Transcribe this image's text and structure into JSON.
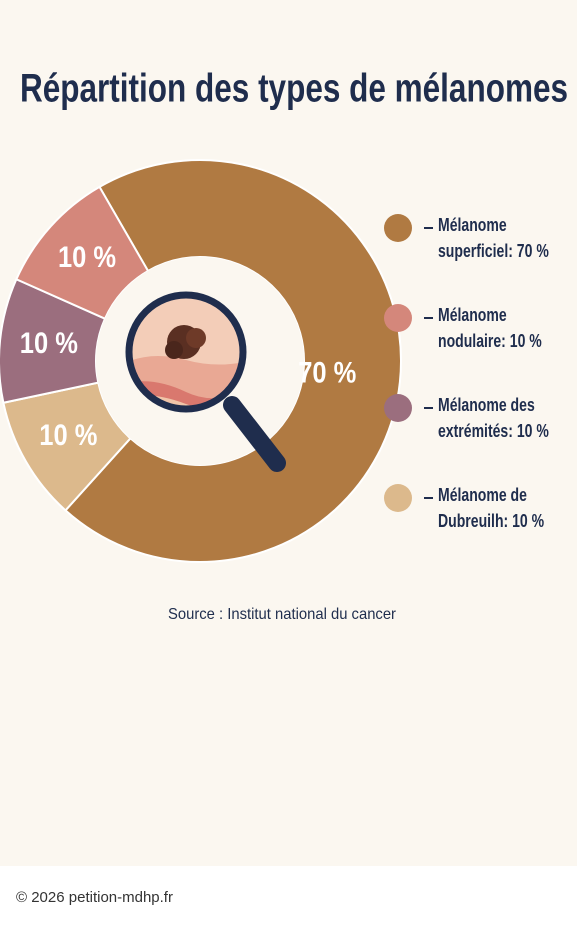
{
  "chart_data": {
    "type": "donut",
    "title": "Répartition des types de mélanomes",
    "categories": [
      "Mélanome superficiel: 70 %",
      "Mélanome de Dubreuilh: 10 %",
      "Mélanome des extrémités: 10 %",
      "Mélanome nodulaire: 10 %"
    ],
    "values": [
      70,
      10,
      10,
      10
    ],
    "value_labels": [
      "70 %",
      "10 %",
      "10 %",
      "10 %"
    ],
    "colors": [
      "#b07a42",
      "#dcb98c",
      "#9b6e7e",
      "#d4877b"
    ],
    "legend_order": [
      0,
      3,
      2,
      1
    ],
    "source": "Source : Institut national du cancer"
  },
  "footer": "© 2026 petition-mdhp.fr"
}
